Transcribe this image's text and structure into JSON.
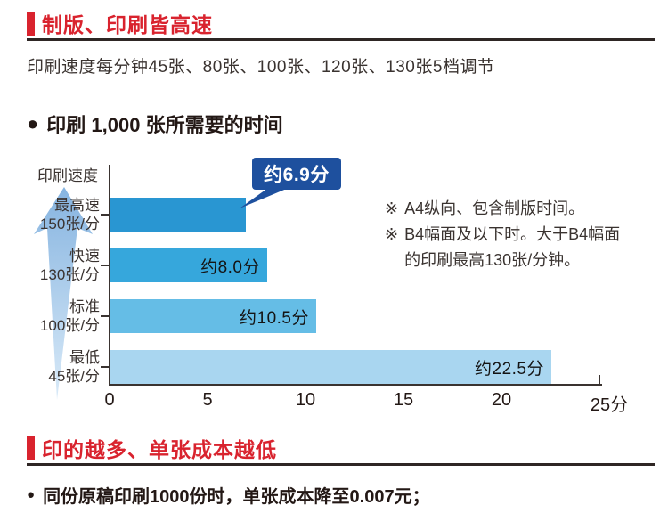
{
  "section1": {
    "title": "制版、印刷皆高速",
    "subtitle": "印刷速度每分钟45张、80张、100张、120张、130张5档调节"
  },
  "chart": {
    "bullet": "●",
    "title": "印刷 1,000 张所需要的时间"
  },
  "chart_data": {
    "type": "bar",
    "orientation": "horizontal",
    "title": "印刷 1,000 张所需要的时间",
    "y_axis_title": "印刷速度",
    "categories": [
      "最高速 150张/分",
      "快速 130张/分",
      "标准 100张/分",
      "最低 45张/分"
    ],
    "category_lines": [
      [
        "最高速",
        "150张/分"
      ],
      [
        "快速",
        "130张/分"
      ],
      [
        "标准",
        "100张/分"
      ],
      [
        "最低",
        "45张/分"
      ]
    ],
    "values": [
      6.9,
      8.0,
      10.5,
      22.5
    ],
    "bar_labels": [
      "约6.9分",
      "约8.0分",
      "约10.5分",
      "约22.5分"
    ],
    "bar_colors": [
      "#2996d2",
      "#36a7dc",
      "#65bde6",
      "#a9d6f0"
    ],
    "xlim": [
      0,
      25
    ],
    "x_ticks": [
      0,
      5,
      10,
      15,
      20,
      25
    ],
    "x_unit": "分",
    "grid": false,
    "legend": "none",
    "callout": {
      "index": 0,
      "label": "约6.9分",
      "color": "#1e509e"
    }
  },
  "notes": [
    {
      "marker": "※",
      "text": "A4纵向、包含制版时间。"
    },
    {
      "marker": "※",
      "text": "B4幅面及以下时。大于B4幅面的印刷最高130张/分钟。"
    }
  ],
  "section2": {
    "title": "印的越多、单张成本越低",
    "bullet": "●",
    "line": "同份原稿印刷1000份时，单张成本降至0.007元；"
  },
  "colors": {
    "accent_red": "#d9232e",
    "callout_blue": "#1e509e",
    "rule_dark": "#2e2624",
    "text_gray": "#3a3330"
  }
}
